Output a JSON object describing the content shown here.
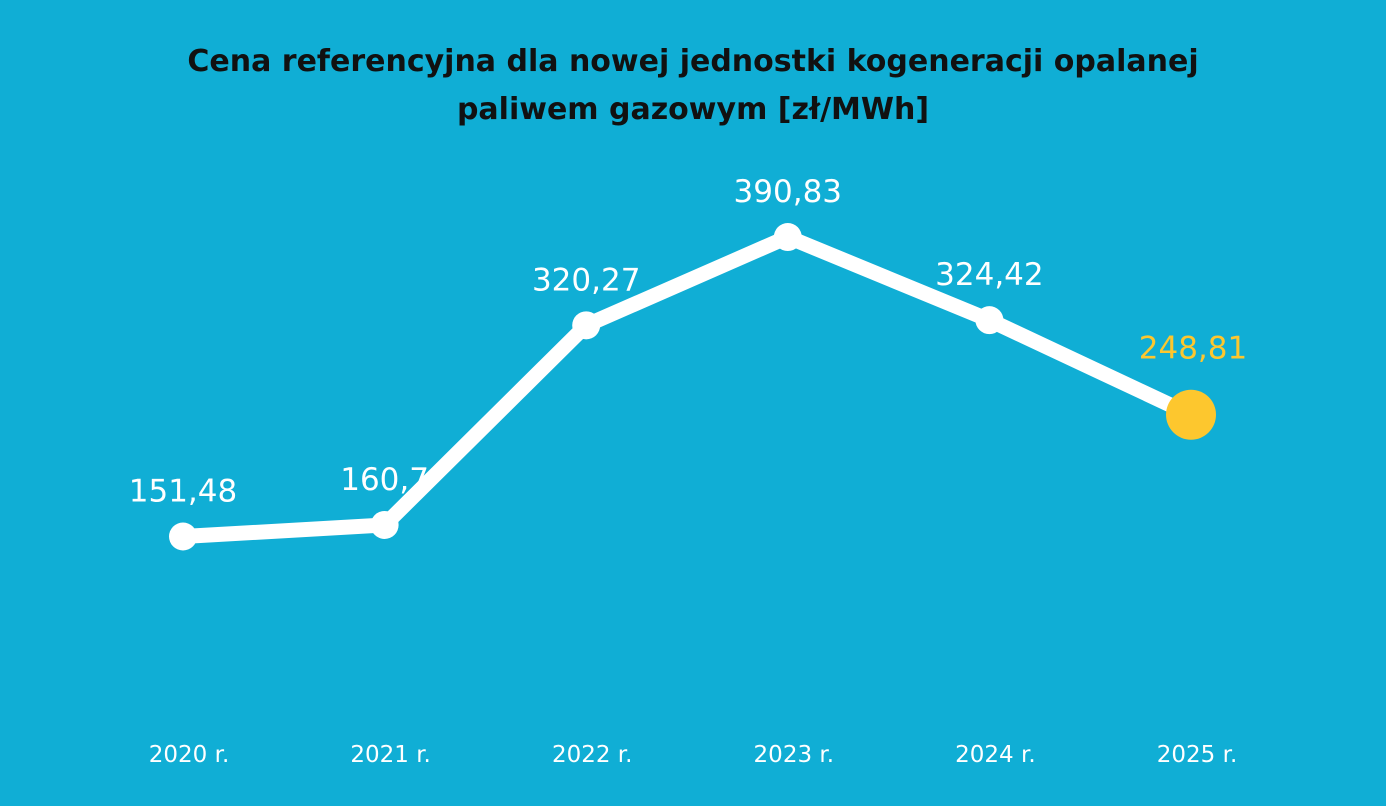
{
  "chart_data": {
    "type": "line",
    "title": "Cena referencyjna dla nowej jednostki kogeneracji opalanej paliwem gazowym [zł/MWh]",
    "categories": [
      "2020 r.",
      "2021 r.",
      "2022 r.",
      "2023 r.",
      "2024 r.",
      "2025 r."
    ],
    "values": [
      151.48,
      160.7,
      320.27,
      390.83,
      324.42,
      248.81
    ],
    "value_labels": [
      "151,48",
      "160,7",
      "320,27",
      "390,83",
      "324,42",
      "248,81"
    ],
    "highlight_index": 5,
    "grid": false,
    "legend": "none",
    "colors": {
      "background": "#10aed5",
      "line": "#ffffff",
      "highlight": "#fdc72e",
      "title": "#111111"
    }
  }
}
